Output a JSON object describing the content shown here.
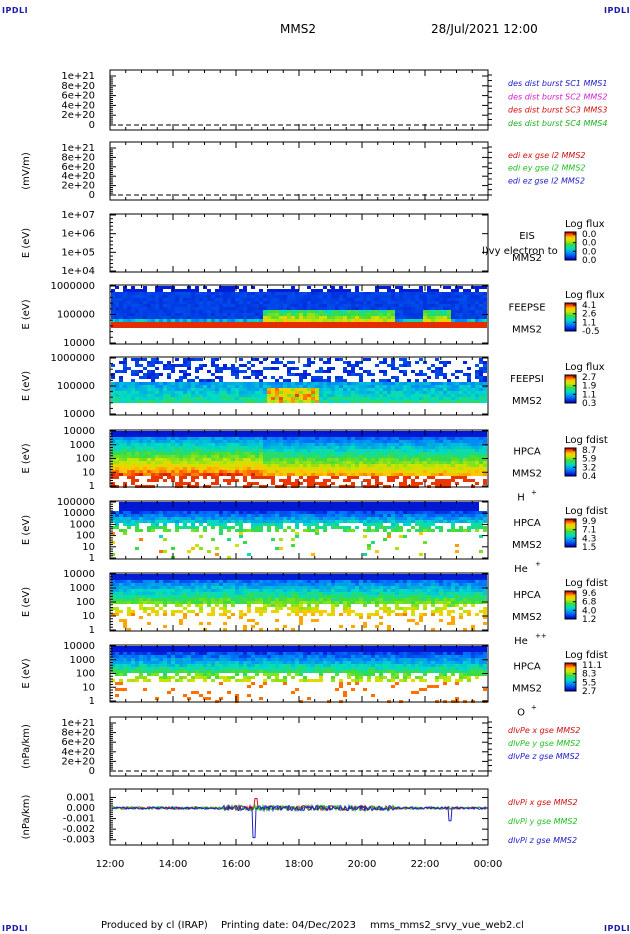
{
  "header": {
    "corner_label": "IPDLI",
    "title": "MMS2",
    "date": "28/Jul/2021 12:00"
  },
  "footer": {
    "produced_by": "Produced by cl (IRAP)",
    "printing_date": "Printing date: 04/Dec/2023",
    "script_name": "mms_mms2_srvy_vue_web2.cl"
  },
  "colors": {
    "mms1": "#2020c8",
    "mms2": "#d020d0",
    "mms3": "#d01010",
    "mms4": "#20b020",
    "x": "#d01010",
    "y": "#20c020",
    "z": "#2020c8"
  },
  "chart_data": [
    {
      "type": "line",
      "panel": 1,
      "yticks": [
        "1e+21",
        "8e+20",
        "6e+20",
        "4e+20",
        "2e+20",
        "0"
      ],
      "ylabel": "",
      "legend": [
        {
          "text": "des dist burst SC1 MMS1",
          "color": "#2020c8"
        },
        {
          "text": "des dist burst SC2 MMS2",
          "color": "#d020d0"
        },
        {
          "text": "des dist burst SC3 MMS3",
          "color": "#d01010"
        },
        {
          "text": "des dist burst SC4 MMS4",
          "color": "#20b020"
        }
      ]
    },
    {
      "type": "line",
      "panel": 2,
      "yticks": [
        "1e+21",
        "8e+20",
        "6e+20",
        "4e+20",
        "2e+20",
        "0"
      ],
      "ylabel": "(mV/m)",
      "legend": [
        {
          "text": "edi ex gse l2 MMS2",
          "color": "#d01010"
        },
        {
          "text": "edi ey gse l2 MMS2",
          "color": "#20c020"
        },
        {
          "text": "edi ez gse l2 MMS2",
          "color": "#2020c8"
        }
      ]
    },
    {
      "type": "heatmap",
      "panel": 3,
      "yticks": [
        "1e+07",
        "1e+06",
        "1e+05",
        "1e+04"
      ],
      "ylabel": "E (eV)",
      "instrument": "EIS",
      "sc": "MMS2",
      "overlay": "l)vy electron to",
      "cbar_title": "Log flux",
      "cbar_ticks": [
        "0.0",
        "0.0",
        "0.0",
        "0.0"
      ]
    },
    {
      "type": "heatmap",
      "panel": 4,
      "yticks": [
        "1000000",
        "100000",
        "10000"
      ],
      "ylabel": "E (eV)",
      "instrument": "FEEPSE",
      "sc": "MMS2",
      "cbar_title": "Log flux",
      "cbar_ticks": [
        "4.1",
        "2.6",
        "1.1",
        "-0.5"
      ]
    },
    {
      "type": "heatmap",
      "panel": 5,
      "yticks": [
        "1000000",
        "100000",
        "10000"
      ],
      "ylabel": "E (eV)",
      "instrument": "FEEPSI",
      "sc": "MMS2",
      "cbar_title": "Log flux",
      "cbar_ticks": [
        "2.7",
        "1.9",
        "1.1",
        "0.3"
      ]
    },
    {
      "type": "heatmap",
      "panel": 6,
      "yticks": [
        "10000",
        "1000",
        "100",
        "10",
        "1"
      ],
      "ylabel": "E (eV)",
      "instrument": "HPCA",
      "sc": "MMS2",
      "species": "H",
      "charge": "+",
      "cbar_title": "Log fdist",
      "cbar_ticks": [
        "8.7",
        "5.9",
        "3.2",
        "0.4"
      ]
    },
    {
      "type": "heatmap",
      "panel": 7,
      "yticks": [
        "100000",
        "10000",
        "1000",
        "100",
        "10",
        "1"
      ],
      "ylabel": "E (eV)",
      "instrument": "HPCA",
      "sc": "MMS2",
      "species": "He",
      "charge": "+",
      "cbar_title": "Log fdist",
      "cbar_ticks": [
        "9.9",
        "7.1",
        "4.3",
        "1.5"
      ]
    },
    {
      "type": "heatmap",
      "panel": 8,
      "yticks": [
        "10000",
        "1000",
        "100",
        "10",
        "1"
      ],
      "ylabel": "E (eV)",
      "instrument": "HPCA",
      "sc": "MMS2",
      "species": "He",
      "charge": "++",
      "cbar_title": "Log fdist",
      "cbar_ticks": [
        "9.6",
        "6.8",
        "4.0",
        "1.2"
      ]
    },
    {
      "type": "heatmap",
      "panel": 9,
      "yticks": [
        "10000",
        "1000",
        "100",
        "10",
        "1"
      ],
      "ylabel": "E (eV)",
      "instrument": "HPCA",
      "sc": "MMS2",
      "species": "O",
      "charge": "+",
      "cbar_title": "Log fdist",
      "cbar_ticks": [
        "11.1",
        "8.3",
        "5.5",
        "2.7"
      ]
    },
    {
      "type": "line",
      "panel": 10,
      "yticks": [
        "1e+21",
        "8e+20",
        "6e+20",
        "4e+20",
        "2e+20",
        "0"
      ],
      "ylabel": "(nPa/km)",
      "legend": [
        {
          "text": "dlvPe x gse MMS2",
          "color": "#d01010"
        },
        {
          "text": "dlvPe y gse MMS2",
          "color": "#20c020"
        },
        {
          "text": "dlvPe z gse MMS2",
          "color": "#2020c8"
        }
      ]
    },
    {
      "type": "line",
      "panel": 11,
      "yticks": [
        "0.001",
        "0.000",
        "-0.001",
        "-0.002",
        "-0.003"
      ],
      "ylabel": "(nPa/km)",
      "ylim": [
        -0.0035,
        0.0018
      ],
      "legend": [
        {
          "text": "dlvPi x gse MMS2",
          "color": "#d01010"
        },
        {
          "text": "dlvPi y gse MMS2",
          "color": "#20c020"
        },
        {
          "text": "dlvPi z gse MMS2",
          "color": "#2020c8"
        }
      ]
    }
  ],
  "xaxis": {
    "ticks": [
      "12:00",
      "14:00",
      "16:00",
      "18:00",
      "20:00",
      "22:00",
      "00:00"
    ],
    "range_hours": [
      12,
      24
    ]
  }
}
